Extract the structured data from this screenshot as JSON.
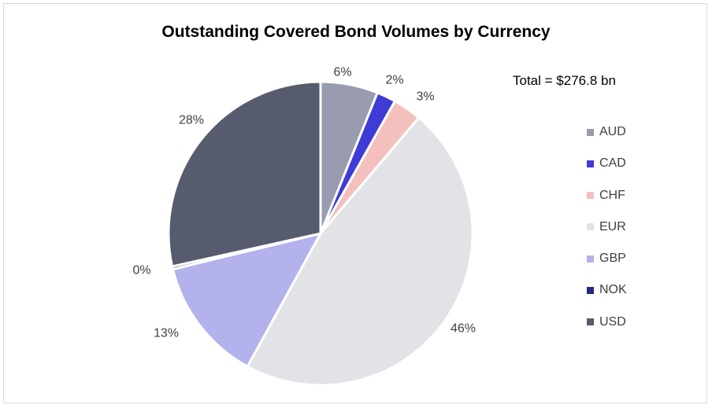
{
  "chart_data": {
    "type": "pie",
    "title": "Outstanding Covered Bond Volumes by Currency",
    "annotation": "Total = $276.8 bn",
    "legend_position": "right",
    "slices": [
      {
        "label": "AUD",
        "value": 6,
        "display": "6%",
        "color": "#989cae"
      },
      {
        "label": "CAD",
        "value": 2,
        "display": "2%",
        "color": "#3f3bd6"
      },
      {
        "label": "CHF",
        "value": 3,
        "display": "3%",
        "color": "#f3c0bd"
      },
      {
        "label": "EUR",
        "value": 46,
        "display": "46%",
        "color": "#e1e3e7"
      },
      {
        "label": "GBP",
        "value": 13,
        "display": "13%",
        "color": "#b4b2ec"
      },
      {
        "label": "NOK",
        "value": 0.3,
        "display": "0%",
        "color": "#282878"
      },
      {
        "label": "USD",
        "value": 28,
        "display": "28%",
        "color": "#575b6e"
      }
    ]
  }
}
